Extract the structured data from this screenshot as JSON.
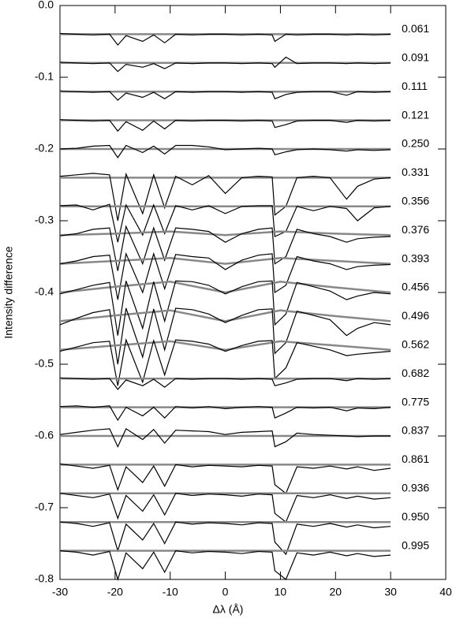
{
  "chart_data": {
    "type": "line",
    "xlabel": "Δλ (Å)",
    "ylabel": "Intensity difference",
    "xlim": [
      -30,
      40
    ],
    "xticks": [
      -30,
      -20,
      -10,
      0,
      10,
      20,
      30,
      40
    ],
    "ylim": [
      -0.8,
      0.0
    ],
    "yticks": [
      {
        "value": 0,
        "label": "0.0"
      },
      -0.1,
      -0.2,
      -0.3,
      -0.4,
      -0.5,
      -0.6,
      -0.7,
      -0.8
    ],
    "color": "#000000",
    "fit_color": "#888888",
    "x": [
      -30,
      -27,
      -24,
      -21,
      -19.5,
      -18,
      -15,
      -13,
      -11,
      -9,
      -6,
      -3,
      0,
      3,
      6,
      8.5,
      9,
      11,
      13,
      16,
      19,
      22,
      24,
      27,
      30
    ],
    "fit_x": [
      -30,
      -20,
      -10,
      0,
      10,
      20,
      30
    ],
    "series": [
      {
        "name": "0.061",
        "values": [
          -0.039,
          -0.04,
          -0.041,
          -0.04,
          -0.055,
          -0.042,
          -0.05,
          -0.041,
          -0.052,
          -0.04,
          -0.041,
          -0.04,
          -0.04,
          -0.041,
          -0.04,
          -0.041,
          -0.05,
          -0.04,
          -0.041,
          -0.04,
          -0.04,
          -0.041,
          -0.04,
          -0.041,
          -0.04
        ],
        "fit": [
          -0.04,
          -0.04,
          -0.04,
          -0.04,
          -0.04,
          -0.04,
          -0.04
        ]
      },
      {
        "name": "0.091",
        "values": [
          -0.079,
          -0.08,
          -0.081,
          -0.08,
          -0.092,
          -0.082,
          -0.086,
          -0.081,
          -0.088,
          -0.08,
          -0.081,
          -0.08,
          -0.08,
          -0.081,
          -0.08,
          -0.081,
          -0.086,
          -0.072,
          -0.081,
          -0.08,
          -0.08,
          -0.081,
          -0.08,
          -0.081,
          -0.08
        ],
        "fit": [
          -0.08,
          -0.08,
          -0.08,
          -0.08,
          -0.08,
          -0.08,
          -0.08
        ]
      },
      {
        "name": "0.111",
        "values": [
          -0.119,
          -0.12,
          -0.121,
          -0.12,
          -0.132,
          -0.122,
          -0.128,
          -0.121,
          -0.13,
          -0.12,
          -0.121,
          -0.12,
          -0.12,
          -0.121,
          -0.12,
          -0.121,
          -0.13,
          -0.124,
          -0.121,
          -0.12,
          -0.12,
          -0.125,
          -0.12,
          -0.121,
          -0.12
        ],
        "fit": [
          -0.12,
          -0.12,
          -0.12,
          -0.12,
          -0.12,
          -0.12,
          -0.12
        ]
      },
      {
        "name": "0.121",
        "values": [
          -0.159,
          -0.16,
          -0.161,
          -0.16,
          -0.175,
          -0.162,
          -0.174,
          -0.161,
          -0.172,
          -0.16,
          -0.161,
          -0.16,
          -0.16,
          -0.161,
          -0.16,
          -0.161,
          -0.17,
          -0.166,
          -0.161,
          -0.16,
          -0.16,
          -0.163,
          -0.16,
          -0.161,
          -0.16
        ],
        "fit": [
          -0.16,
          -0.16,
          -0.16,
          -0.16,
          -0.16,
          -0.16,
          -0.16
        ]
      },
      {
        "name": "0.250",
        "values": [
          -0.2,
          -0.199,
          -0.196,
          -0.195,
          -0.212,
          -0.195,
          -0.205,
          -0.196,
          -0.207,
          -0.195,
          -0.195,
          -0.197,
          -0.201,
          -0.2,
          -0.199,
          -0.2,
          -0.208,
          -0.204,
          -0.201,
          -0.2,
          -0.201,
          -0.203,
          -0.201,
          -0.202,
          -0.201
        ],
        "fit": [
          -0.2,
          -0.2,
          -0.2,
          -0.2,
          -0.2,
          -0.2,
          -0.2
        ]
      },
      {
        "name": "0.331",
        "values": [
          -0.238,
          -0.236,
          -0.234,
          -0.236,
          -0.3,
          -0.235,
          -0.29,
          -0.236,
          -0.282,
          -0.238,
          -0.25,
          -0.237,
          -0.262,
          -0.24,
          -0.238,
          -0.239,
          -0.292,
          -0.28,
          -0.24,
          -0.238,
          -0.24,
          -0.27,
          -0.252,
          -0.242,
          -0.24
        ],
        "fit": [
          -0.24,
          -0.24,
          -0.24,
          -0.24,
          -0.24,
          -0.24,
          -0.24
        ]
      },
      {
        "name": "0.356",
        "values": [
          -0.279,
          -0.278,
          -0.285,
          -0.277,
          -0.33,
          -0.278,
          -0.32,
          -0.278,
          -0.318,
          -0.279,
          -0.285,
          -0.279,
          -0.29,
          -0.28,
          -0.279,
          -0.279,
          -0.322,
          -0.315,
          -0.28,
          -0.286,
          -0.28,
          -0.283,
          -0.3,
          -0.282,
          -0.28
        ],
        "fit": [
          -0.28,
          -0.28,
          -0.28,
          -0.28,
          -0.28,
          -0.28,
          -0.28
        ]
      },
      {
        "name": "0.376",
        "values": [
          -0.321,
          -0.318,
          -0.312,
          -0.31,
          -0.37,
          -0.308,
          -0.36,
          -0.31,
          -0.355,
          -0.31,
          -0.312,
          -0.315,
          -0.33,
          -0.318,
          -0.312,
          -0.31,
          -0.36,
          -0.35,
          -0.312,
          -0.318,
          -0.322,
          -0.33,
          -0.325,
          -0.323,
          -0.322
        ],
        "fit": [
          -0.32,
          -0.318,
          -0.315,
          -0.32,
          -0.315,
          -0.318,
          -0.32
        ]
      },
      {
        "name": "0.393",
        "values": [
          -0.36,
          -0.356,
          -0.35,
          -0.348,
          -0.41,
          -0.346,
          -0.4,
          -0.346,
          -0.395,
          -0.347,
          -0.35,
          -0.352,
          -0.368,
          -0.355,
          -0.348,
          -0.346,
          -0.4,
          -0.39,
          -0.35,
          -0.356,
          -0.36,
          -0.368,
          -0.364,
          -0.362,
          -0.361
        ],
        "fit": [
          -0.36,
          -0.356,
          -0.352,
          -0.36,
          -0.352,
          -0.356,
          -0.36
        ]
      },
      {
        "name": "0.456",
        "values": [
          -0.402,
          -0.396,
          -0.39,
          -0.386,
          -0.46,
          -0.384,
          -0.45,
          -0.385,
          -0.44,
          -0.384,
          -0.385,
          -0.39,
          -0.402,
          -0.392,
          -0.385,
          -0.384,
          -0.445,
          -0.43,
          -0.386,
          -0.392,
          -0.398,
          -0.41,
          -0.405,
          -0.4,
          -0.402
        ],
        "fit": [
          -0.4,
          -0.392,
          -0.385,
          -0.4,
          -0.385,
          -0.393,
          -0.4
        ]
      },
      {
        "name": "0.496",
        "values": [
          -0.445,
          -0.436,
          -0.428,
          -0.424,
          -0.5,
          -0.422,
          -0.49,
          -0.423,
          -0.48,
          -0.422,
          -0.424,
          -0.43,
          -0.442,
          -0.432,
          -0.424,
          -0.423,
          -0.485,
          -0.47,
          -0.426,
          -0.432,
          -0.438,
          -0.46,
          -0.45,
          -0.442,
          -0.445
        ],
        "fit": [
          -0.44,
          -0.432,
          -0.425,
          -0.44,
          -0.425,
          -0.433,
          -0.44
        ]
      },
      {
        "name": "0.562",
        "values": [
          -0.482,
          -0.476,
          -0.47,
          -0.468,
          -0.53,
          -0.466,
          -0.525,
          -0.467,
          -0.515,
          -0.466,
          -0.468,
          -0.472,
          -0.482,
          -0.474,
          -0.468,
          -0.467,
          -0.52,
          -0.505,
          -0.47,
          -0.475,
          -0.48,
          -0.488,
          -0.486,
          -0.484,
          -0.482
        ],
        "fit": [
          -0.48,
          -0.474,
          -0.468,
          -0.48,
          -0.468,
          -0.474,
          -0.48
        ]
      },
      {
        "name": "0.682",
        "values": [
          -0.519,
          -0.52,
          -0.521,
          -0.52,
          -0.535,
          -0.522,
          -0.53,
          -0.521,
          -0.532,
          -0.52,
          -0.521,
          -0.52,
          -0.52,
          -0.521,
          -0.52,
          -0.521,
          -0.53,
          -0.526,
          -0.521,
          -0.52,
          -0.52,
          -0.523,
          -0.52,
          -0.521,
          -0.52
        ],
        "fit": [
          -0.52,
          -0.52,
          -0.52,
          -0.52,
          -0.52,
          -0.52,
          -0.52
        ]
      },
      {
        "name": "0.775",
        "values": [
          -0.559,
          -0.558,
          -0.56,
          -0.558,
          -0.578,
          -0.56,
          -0.572,
          -0.56,
          -0.575,
          -0.559,
          -0.561,
          -0.559,
          -0.562,
          -0.56,
          -0.559,
          -0.56,
          -0.575,
          -0.568,
          -0.56,
          -0.561,
          -0.56,
          -0.565,
          -0.561,
          -0.562,
          -0.56
        ],
        "fit": [
          -0.56,
          -0.56,
          -0.56,
          -0.56,
          -0.56,
          -0.56,
          -0.56
        ]
      },
      {
        "name": "0.837",
        "values": [
          -0.598,
          -0.595,
          -0.592,
          -0.59,
          -0.615,
          -0.59,
          -0.605,
          -0.591,
          -0.61,
          -0.592,
          -0.593,
          -0.594,
          -0.598,
          -0.595,
          -0.594,
          -0.593,
          -0.615,
          -0.608,
          -0.596,
          -0.598,
          -0.599,
          -0.6,
          -0.601,
          -0.6,
          -0.6
        ],
        "fit": [
          -0.6,
          -0.6,
          -0.6,
          -0.6,
          -0.6,
          -0.6,
          -0.6
        ]
      },
      {
        "name": "0.861",
        "values": [
          -0.639,
          -0.642,
          -0.645,
          -0.641,
          -0.675,
          -0.643,
          -0.665,
          -0.642,
          -0.67,
          -0.64,
          -0.643,
          -0.641,
          -0.642,
          -0.643,
          -0.641,
          -0.642,
          -0.668,
          -0.68,
          -0.643,
          -0.645,
          -0.642,
          -0.646,
          -0.643,
          -0.648,
          -0.645
        ],
        "fit": [
          -0.64,
          -0.64,
          -0.64,
          -0.64,
          -0.64,
          -0.64,
          -0.64
        ]
      },
      {
        "name": "0.936",
        "values": [
          -0.68,
          -0.683,
          -0.686,
          -0.681,
          -0.715,
          -0.683,
          -0.705,
          -0.682,
          -0.71,
          -0.68,
          -0.683,
          -0.681,
          -0.682,
          -0.684,
          -0.681,
          -0.682,
          -0.708,
          -0.72,
          -0.683,
          -0.686,
          -0.682,
          -0.687,
          -0.684,
          -0.688,
          -0.686
        ],
        "fit": [
          -0.68,
          -0.68,
          -0.68,
          -0.68,
          -0.68,
          -0.68,
          -0.68
        ]
      },
      {
        "name": "0.950",
        "values": [
          -0.72,
          -0.722,
          -0.726,
          -0.721,
          -0.76,
          -0.723,
          -0.745,
          -0.722,
          -0.75,
          -0.72,
          -0.723,
          -0.721,
          -0.722,
          -0.724,
          -0.721,
          -0.722,
          -0.748,
          -0.765,
          -0.723,
          -0.726,
          -0.722,
          -0.727,
          -0.724,
          -0.728,
          -0.726
        ],
        "fit": [
          -0.72,
          -0.72,
          -0.72,
          -0.72,
          -0.72,
          -0.72,
          -0.72
        ]
      },
      {
        "name": "0.995",
        "values": [
          -0.76,
          -0.762,
          -0.766,
          -0.761,
          -0.8,
          -0.763,
          -0.785,
          -0.762,
          -0.79,
          -0.76,
          -0.763,
          -0.761,
          -0.762,
          -0.764,
          -0.761,
          -0.762,
          -0.788,
          -0.8,
          -0.763,
          -0.766,
          -0.762,
          -0.767,
          -0.764,
          -0.768,
          -0.766
        ],
        "fit": [
          -0.76,
          -0.76,
          -0.76,
          -0.76,
          -0.76,
          -0.76,
          -0.76
        ]
      }
    ]
  }
}
